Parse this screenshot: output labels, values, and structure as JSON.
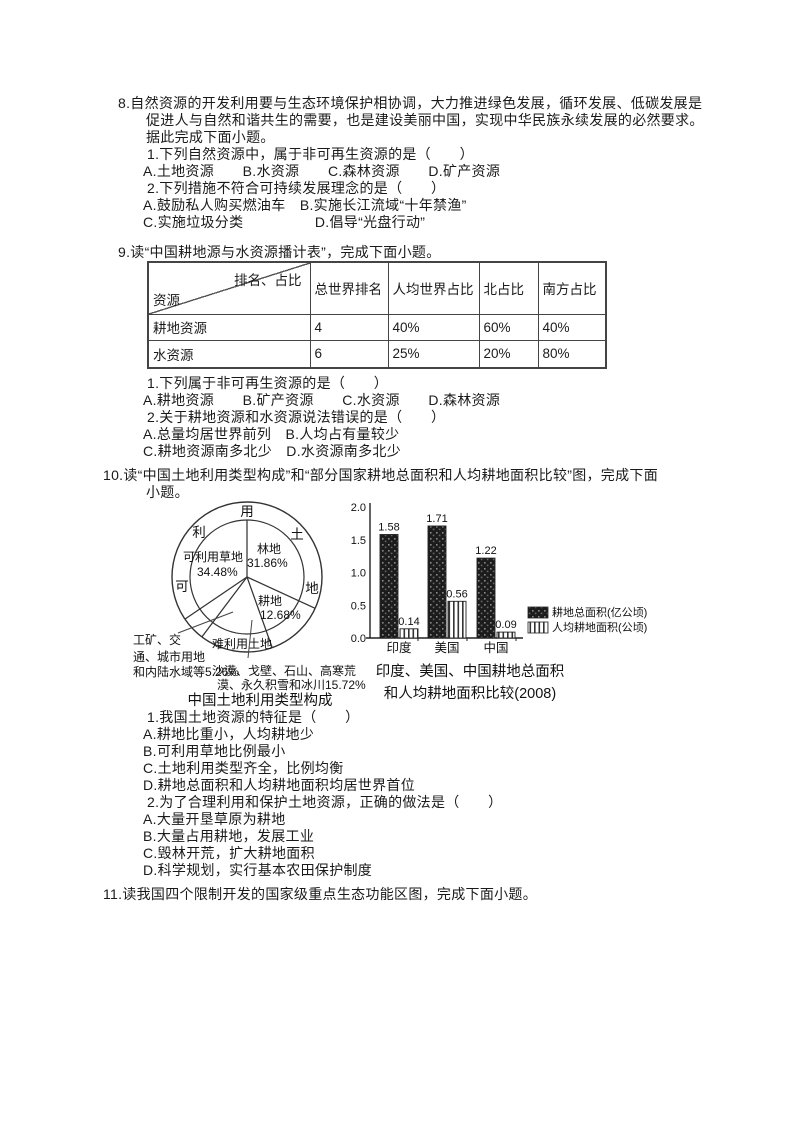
{
  "q8": {
    "stem1": "8.自然资源的开发利用要与生态环境保护相协调，大力推进绿色发展，循环发展、低碳发展是",
    "stem2": "促进人与自然和谐共生的需要，也是建设美丽中国，实现中华民族永续发展的必然要求。",
    "stem3": "据此完成下面小题。",
    "sub1": "1.下列自然资源中，属于非可再生资源的是（　　）",
    "sub1_opts": "A.土地资源　　B.水资源　　C.森林资源　　D.矿产资源",
    "sub2": "2.下列措施不符合可持续发展理念的是（　　）",
    "sub2_optsAB": "A.鼓励私人购买燃油车　B.实施长江流域“十年禁渔”",
    "sub2_optsCD": "C.实施垃圾分类　　　　　D.倡导“光盘行动”"
  },
  "q9": {
    "title": "9.读“中国耕地源与水资源播计表”，完成下面小题。",
    "table": {
      "corner_top": "排名、占比",
      "corner_bottom": "资源",
      "headers": [
        "总世界排名",
        "人均世界占比",
        "北占比",
        "南方占比"
      ],
      "rows": [
        {
          "label": "耕地资源",
          "cells": [
            "4",
            "40%",
            "60%",
            "40%"
          ]
        },
        {
          "label": "水资源",
          "cells": [
            "6",
            "25%",
            "20%",
            "80%"
          ]
        }
      ]
    },
    "sub1": "1.下列属于非可再生资源的是（　　）",
    "sub1_opts": "A.耕地资源　　B.矿产资源　　C.水资源　　D.森林资源",
    "sub2": "2.关于耕地资源和水资源说法错误的是（　　）",
    "sub2_optsAB": "A.总量均居世界前列　B.人均占有量较少",
    "sub2_optsCD": "C.耕地资源南多北少　D.水资源南多北少"
  },
  "q10": {
    "stem1": "10.读“中国土地利用类型构成”和“部分国家耕地总面积和人均耕地面积比较”图，完成下面",
    "stem2": "小题。",
    "sub1": "1.我国土地资源的特征是（　　）",
    "sub1_optA": "A.耕地比重小，人均耕地少",
    "sub1_optB": "B.可利用草地比例最小",
    "sub1_optC": "C.土地利用类型齐全，比例均衡",
    "sub1_optD": "D.耕地总面积和人均耕地面积均居世界首位",
    "sub2": "2.为了合理利用和保护土地资源，正确的做法是（　　）",
    "sub2_optA": "A.大量开垦草原为耕地",
    "sub2_optB": "B.大量占用耕地，发展工业",
    "sub2_optC": "C.毁林开荒，扩大耕地面积",
    "sub2_optD": "D.科学规划，实行基本农田保护制度"
  },
  "q11": {
    "stem": "11.读我国四个限制开发的国家级重点生态功能区图，完成下面小题。"
  },
  "chart_data": [
    {
      "type": "pie",
      "title": "中国土地利用类型构成",
      "ring_label_chars": [
        "可",
        "利",
        "用",
        "土",
        "地"
      ],
      "slices": [
        {
          "name": "林地",
          "value": 31.86,
          "label": "31.86%"
        },
        {
          "name": "耕地",
          "value": 12.68,
          "label": "12.68%"
        },
        {
          "name": "难利用土地",
          "value": 15.72,
          "label": "15.72%"
        },
        {
          "name": "工矿、交通、城市用地和内陆水域等",
          "value": 5.26,
          "label": "5.26%"
        },
        {
          "name": "可利用草地",
          "value": 34.48,
          "label": "34.48%"
        }
      ],
      "outside_labels": [
        {
          "lines": [
            "工矿、交",
            "通、城市用地",
            "和内陆水域等5.26%"
          ]
        },
        {
          "lines": [
            "沙漠、戈壁、石山、高寒荒",
            "漠、永久积雪和冰川15.72%"
          ]
        }
      ]
    },
    {
      "type": "bar",
      "title_lines": [
        "印度、美国、中国耕地总面积",
        "和人均耕地面积比较(2008)"
      ],
      "categories": [
        "印度",
        "美国",
        "中国"
      ],
      "series": [
        {
          "name": "耕地总面积(亿公顷)",
          "values": [
            1.58,
            1.71,
            1.22
          ],
          "style": "dark-speckle"
        },
        {
          "name": "人均耕地面积(公顷)",
          "values": [
            0.14,
            0.56,
            0.09
          ],
          "style": "vertical-stripes"
        }
      ],
      "yticks": [
        0.0,
        0.5,
        1.0,
        1.5,
        2.0
      ],
      "ylim": [
        0,
        2.0
      ],
      "grid": false,
      "legend_position": "right"
    }
  ]
}
